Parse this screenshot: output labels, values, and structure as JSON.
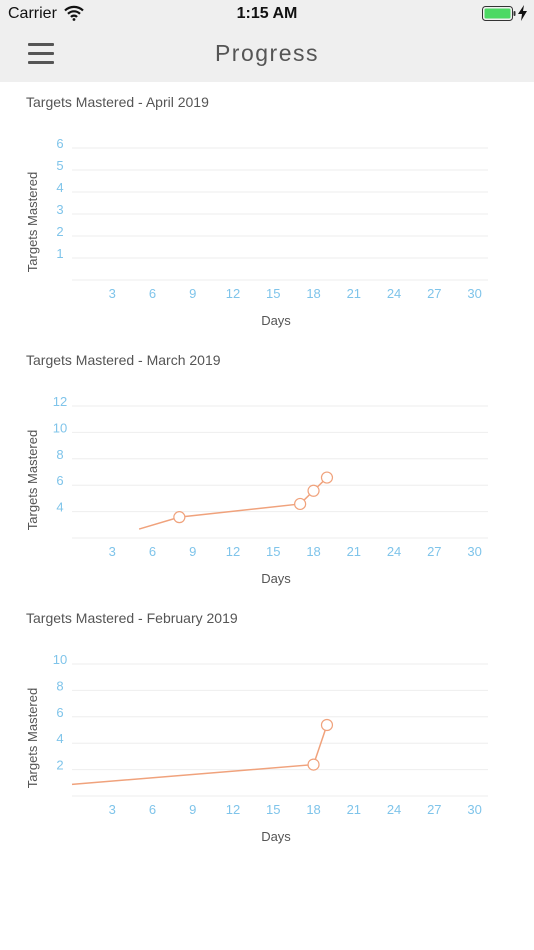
{
  "status_bar": {
    "carrier": "Carrier",
    "time": "1:15 AM",
    "battery_color": "#4cd964"
  },
  "nav": {
    "title": "Progress",
    "menu_icon": "hamburger-menu-icon"
  },
  "colors": {
    "tick": "#7fc4ea",
    "series": "#f0a27c",
    "grid": "#eeeeee"
  },
  "charts": [
    {
      "title": "Targets Mastered - April 2019",
      "chart_data": {
        "type": "line",
        "title": "Targets Mastered - April 2019",
        "xlabel": "Days",
        "ylabel": "Targets Mastered",
        "xlim": [
          0,
          31
        ],
        "ylim": [
          0,
          6
        ],
        "x_ticks": [
          3,
          6,
          9,
          12,
          15,
          18,
          21,
          24,
          27,
          30
        ],
        "y_ticks": [
          1,
          2,
          3,
          4,
          5,
          6
        ],
        "grid": true,
        "series": [
          {
            "points": []
          }
        ]
      }
    },
    {
      "title": "Targets Mastered - March 2019",
      "chart_data": {
        "type": "line",
        "title": "Targets Mastered - March 2019",
        "xlabel": "Days",
        "ylabel": "Targets Mastered",
        "xlim": [
          0,
          31
        ],
        "ylim": [
          2,
          12
        ],
        "x_ticks": [
          3,
          6,
          9,
          12,
          15,
          18,
          21,
          24,
          27,
          30
        ],
        "y_ticks": [
          4,
          6,
          8,
          10,
          12
        ],
        "grid": true,
        "series": [
          {
            "points": [
              [
                5,
                2.3,
                false
              ],
              [
                8,
                3.2,
                true
              ],
              [
                17,
                4.2,
                true
              ],
              [
                18,
                5.2,
                true
              ],
              [
                19,
                6.2,
                true
              ]
            ]
          }
        ]
      }
    },
    {
      "title": "Targets Mastered - February 2019",
      "chart_data": {
        "type": "line",
        "title": "Targets Mastered - February 2019",
        "xlabel": "Days",
        "ylabel": "Targets Mastered",
        "xlim": [
          0,
          31
        ],
        "ylim": [
          0,
          10
        ],
        "x_ticks": [
          3,
          6,
          9,
          12,
          15,
          18,
          21,
          24,
          27,
          30
        ],
        "y_ticks": [
          2,
          4,
          6,
          8,
          10
        ],
        "grid": true,
        "series": [
          {
            "points": [
              [
                0,
                0.5,
                false
              ],
              [
                18,
                2,
                true
              ],
              [
                19,
                5,
                true
              ]
            ]
          }
        ]
      }
    }
  ]
}
